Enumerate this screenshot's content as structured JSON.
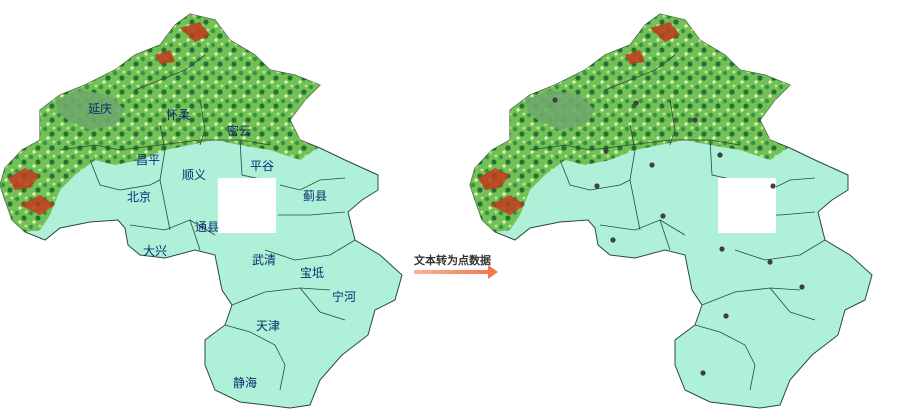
{
  "left_map": {
    "labels": [
      "延庆",
      "怀柔",
      "密云",
      "昌平",
      "顺义",
      "平谷",
      "北京",
      "蓟县",
      "通县",
      "大兴",
      "武清",
      "宝坻",
      "宁河",
      "天津",
      "静海"
    ]
  },
  "arrow": {
    "caption": "文本转为点数据"
  },
  "right_map": {
    "point_count": 15
  },
  "colors": {
    "lowland": "#aef0d8",
    "plain_green": "#b9e9a3",
    "low_hills": "#e8f6b0",
    "forest": "#2f8e3a",
    "mountain_dark": "#1f6a2c",
    "peak_brown": "#8a4a1e",
    "peak_red": "#c23a1c",
    "reservoir": "#6fa86a",
    "border": "#2b4a3a",
    "label_text": "#0a2a6e",
    "arrow": "#f07a50",
    "point": "#404040"
  }
}
